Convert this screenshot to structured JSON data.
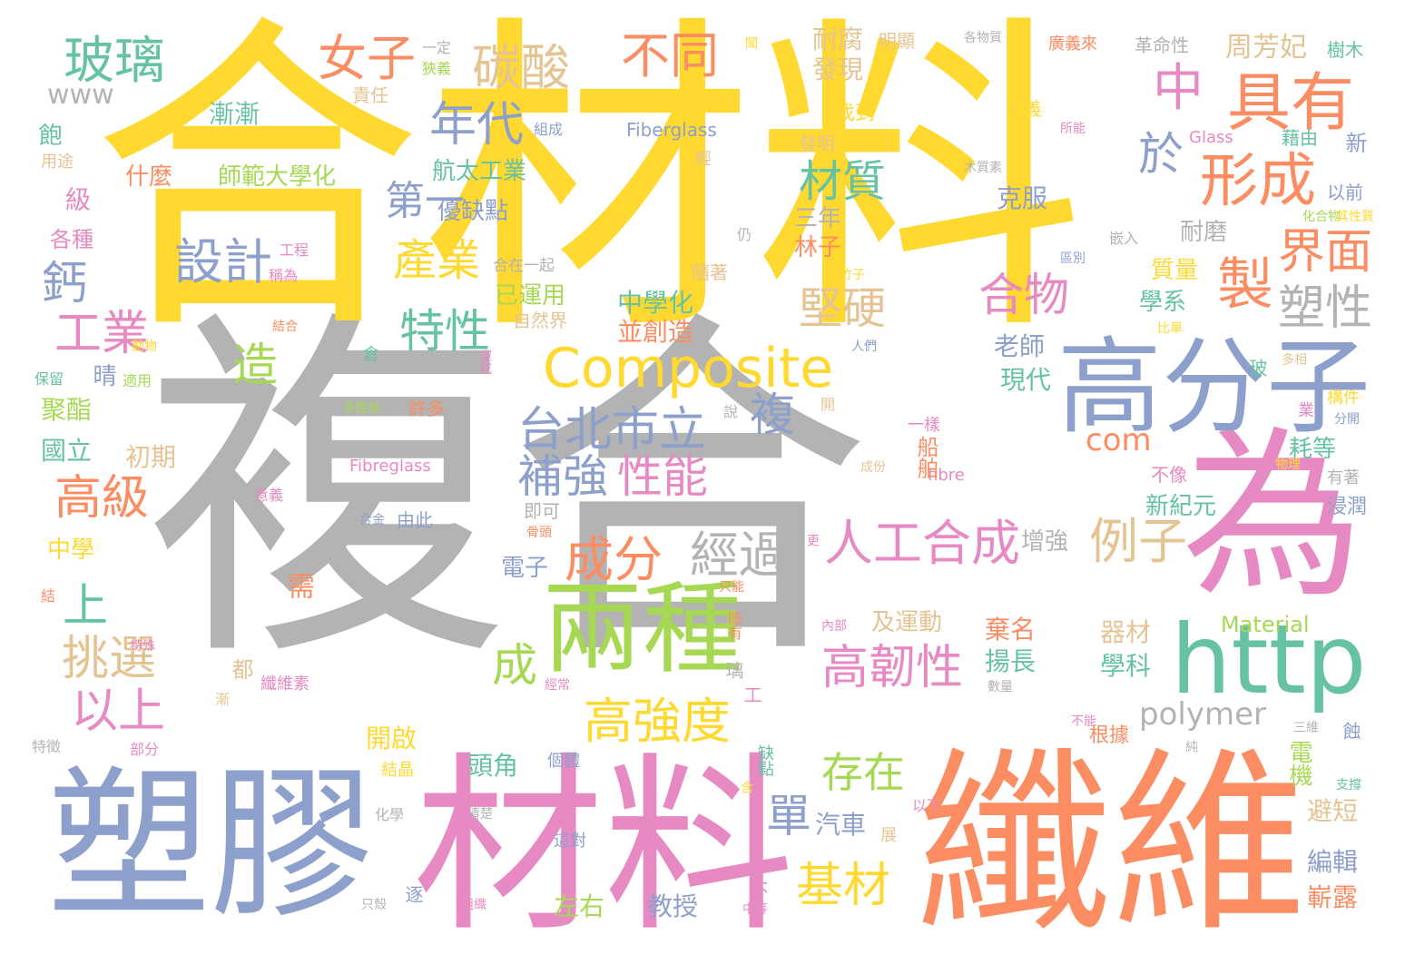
{
  "palette": {
    "gray": "#b3b3b3",
    "yellow": "#ffd92f",
    "blue": "#8da0cb",
    "pink": "#e78ac3",
    "orange": "#fc8d62",
    "green": "#a6d854",
    "teal": "#66c2a5",
    "tan": "#e5c494"
  },
  "words": [
    {
      "text": "複合",
      "color": "gray"
    },
    {
      "text": "合材料",
      "color": "yellow"
    },
    {
      "text": "纖維",
      "color": "orange"
    },
    {
      "text": "材料",
      "color": "pink"
    },
    {
      "text": "塑膠",
      "color": "blue"
    },
    {
      "text": "為",
      "color": "pink"
    },
    {
      "text": "高分子",
      "color": "blue"
    },
    {
      "text": "兩種",
      "color": "green"
    },
    {
      "text": "http",
      "color": "teal"
    },
    {
      "text": "Composite",
      "color": "yellow"
    },
    {
      "text": "玻璃",
      "color": "teal"
    },
    {
      "text": "設計",
      "color": "blue"
    },
    {
      "text": "碳酸",
      "color": "tan"
    },
    {
      "text": "女子",
      "color": "orange"
    },
    {
      "text": "不同",
      "color": "orange"
    },
    {
      "text": "中",
      "color": "pink"
    },
    {
      "text": "具有",
      "color": "orange"
    },
    {
      "text": "形成",
      "color": "orange"
    },
    {
      "text": "年代",
      "color": "blue"
    },
    {
      "text": "台北市立",
      "color": "blue"
    },
    {
      "text": "補強",
      "color": "blue"
    },
    {
      "text": "性能",
      "color": "pink"
    },
    {
      "text": "成分",
      "color": "orange"
    },
    {
      "text": "經過",
      "color": "gray"
    },
    {
      "text": "人工合成",
      "color": "pink"
    },
    {
      "text": "例子",
      "color": "tan"
    },
    {
      "text": "高韌性",
      "color": "pink"
    },
    {
      "text": "高強度",
      "color": "yellow"
    },
    {
      "text": "基材",
      "color": "yellow"
    },
    {
      "text": "存在",
      "color": "green"
    },
    {
      "text": "產業",
      "color": "yellow"
    },
    {
      "text": "特性",
      "color": "teal"
    },
    {
      "text": "堅硬",
      "color": "tan"
    },
    {
      "text": "合物",
      "color": "pink"
    },
    {
      "text": "界面",
      "color": "orange"
    },
    {
      "text": "塑性",
      "color": "gray"
    },
    {
      "text": "材質",
      "color": "teal"
    },
    {
      "text": "高級",
      "color": "orange"
    },
    {
      "text": "挑選",
      "color": "tan"
    },
    {
      "text": "以上",
      "color": "pink"
    },
    {
      "text": "工業",
      "color": "pink"
    },
    {
      "text": "com",
      "color": "orange"
    },
    {
      "text": "polymer",
      "color": "gray"
    },
    {
      "text": "Material",
      "color": "green"
    },
    {
      "text": "www",
      "color": "gray"
    },
    {
      "text": "第一",
      "color": "blue"
    },
    {
      "text": "航太工業",
      "color": "teal"
    },
    {
      "text": "優缺點",
      "color": "blue"
    },
    {
      "text": "師範大學化",
      "color": "green"
    },
    {
      "text": "中學化",
      "color": "teal"
    },
    {
      "text": "並創造",
      "color": "orange"
    },
    {
      "text": "已運用",
      "color": "green"
    },
    {
      "text": "周芳妃",
      "color": "tan"
    },
    {
      "text": "耐腐",
      "color": "tan"
    },
    {
      "text": "發現",
      "color": "tan"
    },
    {
      "text": "克服",
      "color": "blue"
    },
    {
      "text": "耐磨",
      "color": "gray"
    },
    {
      "text": "三年",
      "color": "gray"
    },
    {
      "text": "林子",
      "color": "orange"
    },
    {
      "text": "老師",
      "color": "blue"
    },
    {
      "text": "現代",
      "color": "teal"
    },
    {
      "text": "增強",
      "color": "gray"
    },
    {
      "text": "電子",
      "color": "blue"
    },
    {
      "text": "新紀元",
      "color": "teal"
    },
    {
      "text": "耗等",
      "color": "teal"
    },
    {
      "text": "及運動",
      "color": "tan"
    },
    {
      "text": "揚長",
      "color": "teal"
    },
    {
      "text": "棄名",
      "color": "orange"
    },
    {
      "text": "器材",
      "color": "tan"
    },
    {
      "text": "學科",
      "color": "teal"
    },
    {
      "text": "左右",
      "color": "green"
    },
    {
      "text": "教授",
      "color": "blue"
    },
    {
      "text": "汽車",
      "color": "blue"
    },
    {
      "text": "頭角",
      "color": "teal"
    },
    {
      "text": "開啟",
      "color": "yellow"
    },
    {
      "text": "國立",
      "color": "teal"
    },
    {
      "text": "初期",
      "color": "tan"
    },
    {
      "text": "聚酯",
      "color": "green"
    },
    {
      "text": "什麼",
      "color": "orange"
    },
    {
      "text": "漸漸",
      "color": "teal"
    },
    {
      "text": "質量",
      "color": "yellow"
    },
    {
      "text": "學系",
      "color": "teal"
    },
    {
      "text": "編輯",
      "color": "blue"
    },
    {
      "text": "嶄露",
      "color": "orange"
    },
    {
      "text": "避短",
      "color": "tan"
    },
    {
      "text": "找到",
      "color": "yellow"
    },
    {
      "text": "發明",
      "color": "tan"
    },
    {
      "text": "以前",
      "color": "blue"
    },
    {
      "text": "不像",
      "color": "pink"
    },
    {
      "text": "各種",
      "color": "pink"
    },
    {
      "text": "用途",
      "color": "tan"
    },
    {
      "text": "中學",
      "color": "yellow"
    },
    {
      "text": "由此",
      "color": "blue"
    },
    {
      "text": "即可",
      "color": "gray"
    },
    {
      "text": "根據",
      "color": "orange"
    },
    {
      "text": "浸潤",
      "color": "blue"
    },
    {
      "text": "有著",
      "color": "gray"
    },
    {
      "text": "樹木",
      "color": "teal"
    },
    {
      "text": "革命性",
      "color": "gray"
    },
    {
      "text": "廣義來",
      "color": "orange"
    },
    {
      "text": "藉由",
      "color": "teal"
    },
    {
      "text": "定義",
      "color": "yellow"
    },
    {
      "text": "明顯",
      "color": "tan"
    },
    {
      "text": "一定",
      "color": "gray"
    },
    {
      "text": "狹義",
      "color": "green"
    },
    {
      "text": "責任",
      "color": "tan"
    },
    {
      "text": "許多",
      "color": "orange"
    },
    {
      "text": "自然界",
      "color": "tan"
    },
    {
      "text": "隨著",
      "color": "tan"
    },
    {
      "text": "合在一起",
      "color": "gray"
    },
    {
      "text": "Fiberglass",
      "color": "blue"
    },
    {
      "text": "Fibreglass",
      "color": "pink"
    },
    {
      "text": "fibre",
      "color": "pink"
    },
    {
      "text": "Glass",
      "color": "pink"
    },
    {
      "text": "組成",
      "color": "blue"
    },
    {
      "text": "嵌入",
      "color": "gray"
    },
    {
      "text": "所能",
      "color": "pink"
    },
    {
      "text": "化合物",
      "color": "green"
    },
    {
      "text": "其性質",
      "color": "yellow"
    },
    {
      "text": "區別",
      "color": "blue"
    },
    {
      "text": "比單",
      "color": "yellow"
    },
    {
      "text": "多相",
      "color": "tan"
    },
    {
      "text": "分開",
      "color": "blue"
    },
    {
      "text": "構件",
      "color": "yellow"
    },
    {
      "text": "物理",
      "color": "yellow"
    },
    {
      "text": "支撐",
      "color": "teal"
    },
    {
      "text": "三維",
      "color": "gray"
    },
    {
      "text": "各物質",
      "color": "gray"
    },
    {
      "text": "木質素",
      "color": "gray"
    },
    {
      "text": "竹子",
      "color": "yellow"
    },
    {
      "text": "人們",
      "color": "blue"
    },
    {
      "text": "一樣",
      "color": "pink"
    },
    {
      "text": "成份",
      "color": "tan"
    },
    {
      "text": "工程",
      "color": "pink"
    },
    {
      "text": "稱為",
      "color": "pink"
    },
    {
      "text": "結合",
      "color": "orange"
    },
    {
      "text": "動物",
      "color": "yellow"
    },
    {
      "text": "保留",
      "color": "teal"
    },
    {
      "text": "適用",
      "color": "green"
    },
    {
      "text": "多胜肽",
      "color": "green"
    },
    {
      "text": "意義",
      "color": "pink"
    },
    {
      "text": "合金",
      "color": "blue"
    },
    {
      "text": "特徵",
      "color": "gray"
    },
    {
      "text": "部分",
      "color": "pink"
    },
    {
      "text": "結晶",
      "color": "yellow"
    },
    {
      "text": "化學",
      "color": "gray"
    },
    {
      "text": "只殼",
      "color": "gray"
    },
    {
      "text": "組織",
      "color": "pink"
    },
    {
      "text": "清楚",
      "color": "gray"
    },
    {
      "text": "這對",
      "color": "blue"
    },
    {
      "text": "個體",
      "color": "blue"
    },
    {
      "text": "纖維素",
      "color": "pink"
    },
    {
      "text": "經常",
      "color": "pink"
    },
    {
      "text": "骨頭",
      "color": "orange"
    },
    {
      "text": "內部",
      "color": "pink"
    },
    {
      "text": "只能",
      "color": "orange"
    },
    {
      "text": "中等",
      "color": "pink"
    },
    {
      "text": "以下",
      "color": "pink"
    },
    {
      "text": "數量",
      "color": "gray"
    },
    {
      "text": "不能",
      "color": "pink"
    },
    {
      "text": "特殊",
      "color": "pink"
    },
    {
      "text": "漸",
      "color": "tan"
    },
    {
      "text": "鈣",
      "color": "blue"
    },
    {
      "text": "造",
      "color": "green"
    },
    {
      "text": "複",
      "color": "blue"
    },
    {
      "text": "製",
      "color": "orange"
    },
    {
      "text": "於",
      "color": "blue"
    },
    {
      "text": "單",
      "color": "blue"
    },
    {
      "text": "成",
      "color": "green"
    },
    {
      "text": "上",
      "color": "teal"
    },
    {
      "text": "晴",
      "color": "blue"
    },
    {
      "text": "級",
      "color": "pink"
    },
    {
      "text": "飽",
      "color": "teal"
    },
    {
      "text": "結",
      "color": "orange"
    },
    {
      "text": "需",
      "color": "orange"
    },
    {
      "text": "都",
      "color": "tan"
    },
    {
      "text": "逐",
      "color": "blue"
    },
    {
      "text": "含",
      "color": "yellow"
    },
    {
      "text": "純",
      "color": "gray"
    },
    {
      "text": "蝕",
      "color": "blue"
    },
    {
      "text": "玻",
      "color": "teal"
    },
    {
      "text": "業",
      "color": "pink"
    },
    {
      "text": "新",
      "color": "blue"
    },
    {
      "text": "開",
      "color": "tan"
    },
    {
      "text": "說",
      "color": "gray"
    },
    {
      "text": "倉",
      "color": "teal"
    },
    {
      "text": "仍",
      "color": "gray"
    },
    {
      "text": "輕",
      "color": "tan"
    },
    {
      "text": "聞",
      "color": "yellow"
    },
    {
      "text": "璃",
      "color": "gray"
    },
    {
      "text": "工",
      "color": "pink"
    },
    {
      "text": "不",
      "color": "pink"
    },
    {
      "text": "既有",
      "color": "orange"
    },
    {
      "text": "缺點",
      "color": "teal"
    },
    {
      "text": "展",
      "color": "tan"
    },
    {
      "text": "更",
      "color": "pink"
    },
    {
      "text": "運成",
      "color": "pink"
    },
    {
      "text": "船舶",
      "color": "orange"
    },
    {
      "text": "電機",
      "color": "green"
    }
  ]
}
